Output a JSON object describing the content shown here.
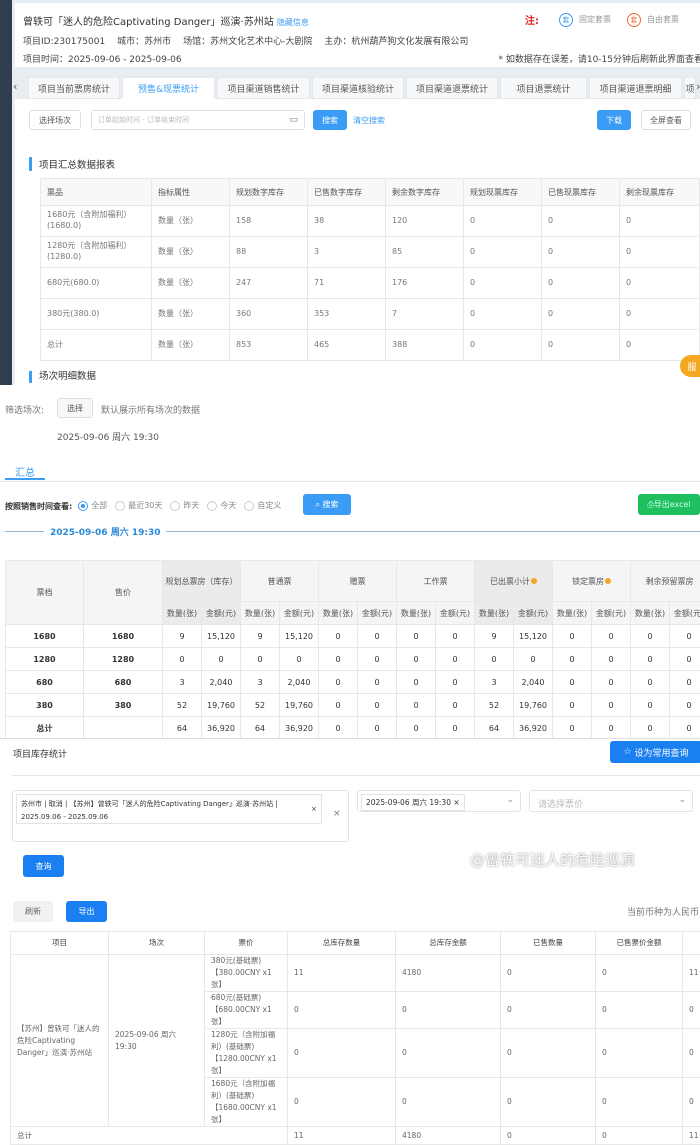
{
  "header": {
    "title": "曾轶可「迷人的危险Captivating Danger」巡演·苏州站",
    "hide_info": "隐藏信息",
    "note_label": "注:",
    "fixed_badge": "套",
    "fixed_label": "固定套票",
    "free_badge": "套",
    "free_label": "自由套票",
    "project_id": "项目ID:230175001",
    "city": "城市：苏州市",
    "venue": "场馆：苏州文化艺术中心-大剧院",
    "organizer": "主办：杭州葫芦狗文化发展有限公司",
    "time": "项目时间：2025-09-06 - 2025-09-06",
    "warning": "* 如数据存在误差，请10-15分钟后刷新此界面查看"
  },
  "tabs": [
    {
      "label": "项目当前票房统计"
    },
    {
      "label": "预售&现票统计"
    },
    {
      "label": "项目渠道销售统计"
    },
    {
      "label": "项目渠道核验统计"
    },
    {
      "label": "项目渠道退票统计"
    },
    {
      "label": "项目退票统计"
    },
    {
      "label": "项目渠道退票明细"
    },
    {
      "label": "项"
    }
  ],
  "toolbar": {
    "select_session": "选择场次",
    "date_placeholder": "订单起始时间 - 订单结束时间",
    "search": "搜索",
    "clear": "清空搜索",
    "download": "下载",
    "fullscreen": "全屏查看"
  },
  "summary": {
    "title": "项目汇总数据报表",
    "next_title": "场次明细数据",
    "float_btn": "服",
    "headers": [
      "票品",
      "指标属性",
      "规划数字库存",
      "已售数字库存",
      "剩余数字库存",
      "规划现票库存",
      "已售现票库存",
      "剩余现票库存"
    ],
    "rows": [
      [
        "1680元（含附加福利）(1680.0)",
        "数量（张）",
        "158",
        "38",
        "120",
        "0",
        "0",
        "0"
      ],
      [
        "1280元（含附加福利）(1280.0)",
        "数量（张）",
        "88",
        "3",
        "85",
        "0",
        "0",
        "0"
      ],
      [
        "680元(680.0)",
        "数量（张）",
        "247",
        "71",
        "176",
        "0",
        "0",
        "0"
      ],
      [
        "380元(380.0)",
        "数量（张）",
        "360",
        "353",
        "7",
        "0",
        "0",
        "0"
      ],
      [
        "总计",
        "数量（张）",
        "853",
        "465",
        "388",
        "0",
        "0",
        "0"
      ]
    ]
  },
  "session_filter": {
    "label": "筛选场次:",
    "select": "选择",
    "hint": "默认展示所有场次的数据",
    "session": "2025-09-06 周六 19:30"
  },
  "sub_tab": "汇总",
  "sales_filter": {
    "label": "按照销售时间查看:",
    "options": [
      {
        "label": "全部",
        "checked": true
      },
      {
        "label": "最近30天",
        "checked": false
      },
      {
        "label": "昨天",
        "checked": false
      },
      {
        "label": "今天",
        "checked": false
      },
      {
        "label": "自定义",
        "checked": false
      }
    ],
    "search": "搜索",
    "export": "导出excel"
  },
  "session_title": "2025-09-06 周六 19:30",
  "box": {
    "col_tier": "票档",
    "col_price": "售价",
    "groups": [
      {
        "label": "规划总票房（库存）",
        "dot": false
      },
      {
        "label": "普通票",
        "dot": false
      },
      {
        "label": "赠票",
        "dot": false
      },
      {
        "label": "工作票",
        "dot": false
      },
      {
        "label": "已出票小计",
        "dot": true
      },
      {
        "label": "锁定票房",
        "dot": true
      },
      {
        "label": "剩余预留票房",
        "dot": false
      }
    ],
    "sub": [
      "数量(张)",
      "金额(元)"
    ],
    "rows": [
      [
        "1680",
        "1680",
        "9",
        "15,120",
        "9",
        "15,120",
        "0",
        "0",
        "0",
        "0",
        "9",
        "15,120",
        "0",
        "0",
        "0",
        "0"
      ],
      [
        "1280",
        "1280",
        "0",
        "0",
        "0",
        "0",
        "0",
        "0",
        "0",
        "0",
        "0",
        "0",
        "0",
        "0",
        "0",
        "0"
      ],
      [
        "680",
        "680",
        "3",
        "2,040",
        "3",
        "2,040",
        "0",
        "0",
        "0",
        "0",
        "3",
        "2,040",
        "0",
        "0",
        "0",
        "0"
      ],
      [
        "380",
        "380",
        "52",
        "19,760",
        "52",
        "19,760",
        "0",
        "0",
        "0",
        "0",
        "52",
        "19,760",
        "0",
        "0",
        "0",
        "0"
      ],
      [
        "总计",
        "",
        "64",
        "36,920",
        "64",
        "36,920",
        "0",
        "0",
        "0",
        "0",
        "64",
        "36,920",
        "0",
        "0",
        "0",
        "0"
      ]
    ]
  },
  "inventory": {
    "title": "项目库存统计",
    "fav": "设为常用查询",
    "project_tag": "苏州市 | 取消 | 【苏州】曾轶可「迷人的危险Captivating Danger」巡演·苏州站 | 2025.09.06 - 2025.09.06",
    "session_tag": "2025-09-06 周六 19:30",
    "price_placeholder": "请选择票价",
    "query": "查询",
    "refresh": "刷新",
    "export": "导出",
    "currency": "当前币种为人民币",
    "headers": [
      "项目",
      "场次",
      "票价",
      "总库存数量",
      "总库存金额",
      "已售数量",
      "已售票价金额",
      ""
    ],
    "project": "【苏州】曾轶可「迷人的危险Captivating Danger」巡演·苏州站",
    "session": "2025-09-06 周六 19:30",
    "rows": [
      [
        "380元(基础票)【380.00CNY x1张】",
        "11",
        "4180",
        "0",
        "0",
        "11"
      ],
      [
        "680元(基础票)【680.00CNY x1张】",
        "0",
        "0",
        "0",
        "0",
        "0"
      ],
      [
        "1280元（含附加福利）(基础票)【1280.00CNY x1张】",
        "0",
        "0",
        "0",
        "0",
        "0"
      ],
      [
        "1680元（含附加福利）(基础票)【1680.00CNY x1张】",
        "0",
        "0",
        "0",
        "0",
        "0"
      ]
    ],
    "total": [
      "总计",
      "11",
      "4180",
      "0",
      "0",
      "11"
    ]
  },
  "watermark": "@曾轶可迷人的危险巡演",
  "colors": {
    "accent": "#3a9cf5",
    "green": "#1fbe5f",
    "orange": "#f5a623"
  }
}
